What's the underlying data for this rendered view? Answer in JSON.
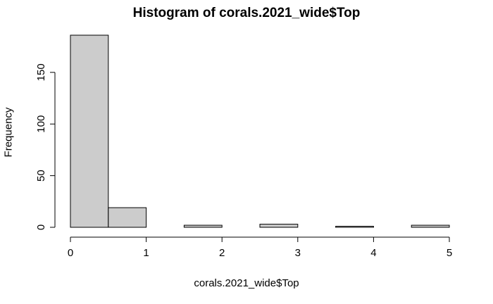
{
  "chart_data": {
    "type": "bar",
    "title": "Histogram of corals.2021_wide$Top",
    "xlabel": "corals.2021_wide$Top",
    "ylabel": "Frequency",
    "bins": [
      {
        "start": 0.0,
        "end": 0.5,
        "count": 186
      },
      {
        "start": 0.5,
        "end": 1.0,
        "count": 19
      },
      {
        "start": 1.0,
        "end": 1.5,
        "count": 0
      },
      {
        "start": 1.5,
        "end": 2.0,
        "count": 2
      },
      {
        "start": 2.0,
        "end": 2.5,
        "count": 0
      },
      {
        "start": 2.5,
        "end": 3.0,
        "count": 3
      },
      {
        "start": 3.0,
        "end": 3.5,
        "count": 0
      },
      {
        "start": 3.5,
        "end": 4.0,
        "count": 1
      },
      {
        "start": 4.0,
        "end": 4.5,
        "count": 0
      },
      {
        "start": 4.5,
        "end": 5.0,
        "count": 2
      }
    ],
    "xlim": [
      0,
      5
    ],
    "ylim": [
      0,
      186
    ],
    "x_ticks": [
      0,
      1,
      2,
      3,
      4,
      5
    ],
    "y_ticks": [
      0,
      50,
      100,
      150
    ],
    "bar_color": "#cccccc",
    "edge_color": "#000000",
    "grid": false
  }
}
